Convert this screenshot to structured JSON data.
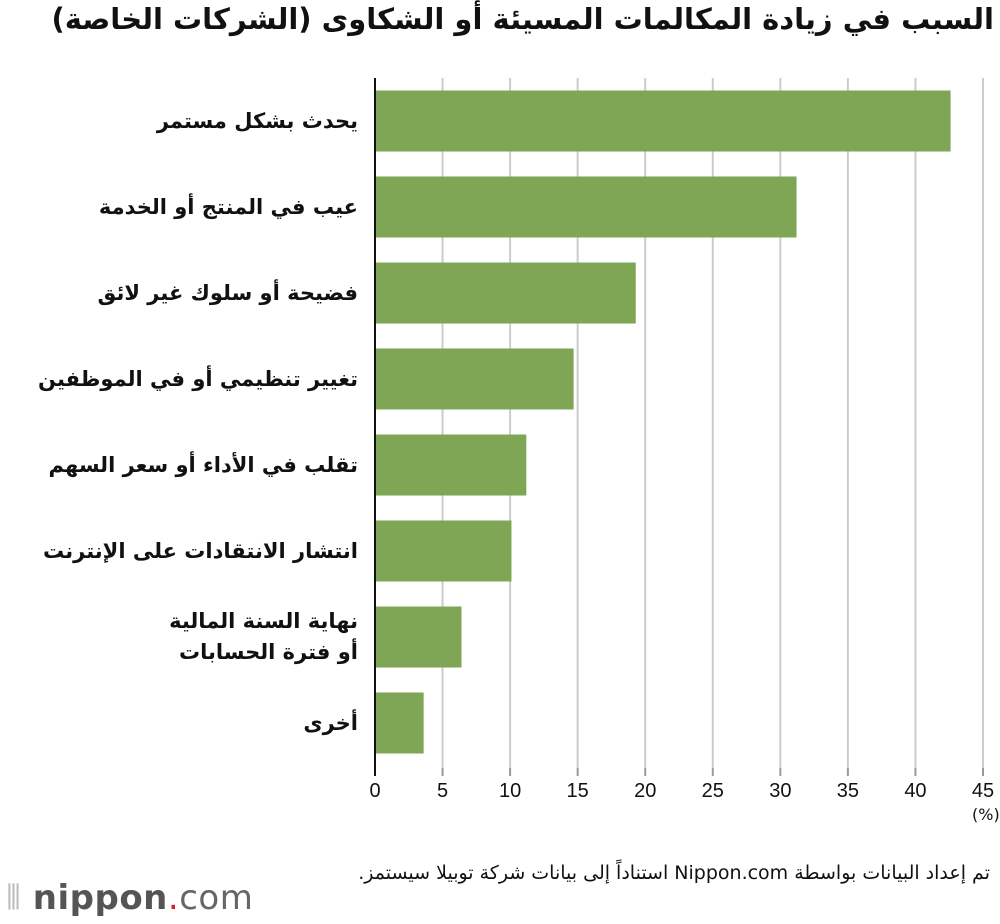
{
  "chart_data": {
    "type": "bar",
    "orientation": "horizontal",
    "title": "السبب في زيادة المكالمات المسيئة أو الشكاوى (الشركات الخاصة)",
    "categories": [
      "يحدث بشكل مستمر",
      "عيب في المنتج أو الخدمة",
      "فضيحة أو سلوك غير لائق",
      "تغيير تنظيمي أو في الموظفين",
      "تقلب في الأداء أو سعر السهم",
      "انتشار الانتقادات على الإنترنت",
      "نهاية السنة المالية\nأو فترة الحسابات",
      "أخرى"
    ],
    "values": [
      42.6,
      31.2,
      19.3,
      14.7,
      11.2,
      10.1,
      6.4,
      3.6
    ],
    "xlim": [
      0,
      45
    ],
    "xticks": [
      "0",
      "5",
      "10",
      "15",
      "20",
      "25",
      "30",
      "35",
      "40",
      "45"
    ],
    "xunit": "(%)",
    "grid": true,
    "bar_color": "#7ea655",
    "grid_color": "#cccccc"
  },
  "source": "تم إعداد البيانات بواسطة Nippon.com استناداً إلى بيانات شركة توبيلا سيستمز.",
  "logo": {
    "name": "nippon",
    "dot": ".",
    "suffix": "com"
  }
}
